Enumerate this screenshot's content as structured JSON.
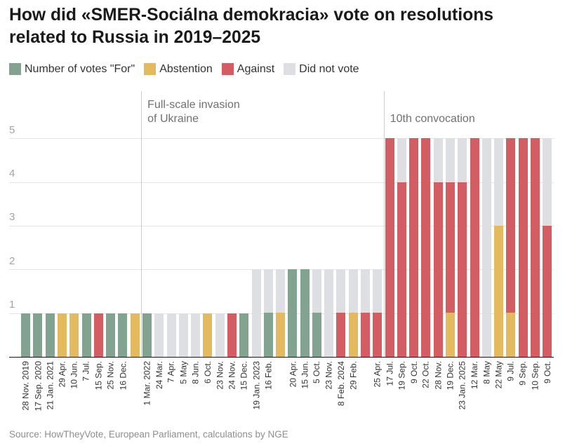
{
  "title": {
    "line1": "How did «SMER-Sociálna demokracia» vote on resolutions",
    "line2": "related to Russia in 2019–2025"
  },
  "legend": [
    {
      "key": "for",
      "label": "Number of votes \"For\"",
      "color": "#82a390"
    },
    {
      "key": "abstention",
      "label": "Abstention",
      "color": "#e4ba5e"
    },
    {
      "key": "against",
      "label": "Against",
      "color": "#d25d62"
    },
    {
      "key": "did_not_vote",
      "label": "Did not vote",
      "color": "#dedfe3"
    }
  ],
  "source": "Source: HowTheyVote, European Parliament, calculations by NGE",
  "chart_data": {
    "type": "bar",
    "stacked": true,
    "title": "How did «SMER-Sociálna demokracia» vote on resolutions related to Russia in 2019–2025",
    "xlabel": "",
    "ylabel": "",
    "ylim": [
      0,
      5
    ],
    "yticks": [
      1,
      2,
      3,
      4,
      5
    ],
    "grid": true,
    "legend_position": "top",
    "series_order": [
      "for",
      "abstention",
      "against",
      "did_not_vote"
    ],
    "annotations": [
      {
        "lines": [
          "Full-scale invasion",
          "of Ukraine"
        ],
        "after_bar_index": 9
      },
      {
        "lines": [
          "10th convocation"
        ],
        "after_bar_index": 29
      }
    ],
    "bars": [
      {
        "label": "28 Nov. 2019",
        "for": 1,
        "abstention": 0,
        "against": 0,
        "did_not_vote": 0
      },
      {
        "label": "17 Sep. 2020",
        "for": 1,
        "abstention": 0,
        "against": 0,
        "did_not_vote": 0
      },
      {
        "label": "21 Jan. 2021",
        "for": 1,
        "abstention": 0,
        "against": 0,
        "did_not_vote": 0
      },
      {
        "label": "29 Apr.",
        "for": 0,
        "abstention": 1,
        "against": 0,
        "did_not_vote": 0
      },
      {
        "label": "10 Jun.",
        "for": 0,
        "abstention": 1,
        "against": 0,
        "did_not_vote": 0
      },
      {
        "label": "7 Jul.",
        "for": 1,
        "abstention": 0,
        "against": 0,
        "did_not_vote": 0
      },
      {
        "label": "15 Sep.",
        "for": 0,
        "abstention": 0,
        "against": 1,
        "did_not_vote": 0
      },
      {
        "label": "25 Nov.",
        "for": 1,
        "abstention": 0,
        "against": 0,
        "did_not_vote": 0
      },
      {
        "label": "16 Dec.",
        "for": 1,
        "abstention": 0,
        "against": 0,
        "did_not_vote": 0
      },
      {
        "label": "",
        "for": 0,
        "abstention": 1,
        "against": 0,
        "did_not_vote": 0
      },
      {
        "label": "1 Mar. 2022",
        "for": 1,
        "abstention": 0,
        "against": 0,
        "did_not_vote": 0
      },
      {
        "label": "24 Mar.",
        "for": 0,
        "abstention": 0,
        "against": 0,
        "did_not_vote": 1
      },
      {
        "label": "7 Apr.",
        "for": 0,
        "abstention": 0,
        "against": 0,
        "did_not_vote": 1
      },
      {
        "label": "5 May",
        "for": 0,
        "abstention": 0,
        "against": 0,
        "did_not_vote": 1
      },
      {
        "label": "8 Jun.",
        "for": 0,
        "abstention": 0,
        "against": 0,
        "did_not_vote": 1
      },
      {
        "label": "6 Oct.",
        "for": 0,
        "abstention": 1,
        "against": 0,
        "did_not_vote": 0
      },
      {
        "label": "23 Nov.",
        "for": 0,
        "abstention": 0,
        "against": 0,
        "did_not_vote": 1
      },
      {
        "label": "24 Nov.",
        "for": 0,
        "abstention": 0,
        "against": 1,
        "did_not_vote": 0
      },
      {
        "label": "15 Dec.",
        "for": 1,
        "abstention": 0,
        "against": 0,
        "did_not_vote": 0
      },
      {
        "label": "19 Jan. 2023",
        "for": 0,
        "abstention": 0,
        "against": 0,
        "did_not_vote": 2
      },
      {
        "label": "16 Feb.",
        "for": 1,
        "abstention": 0,
        "against": 0,
        "did_not_vote": 1
      },
      {
        "label": "",
        "for": 0,
        "abstention": 1,
        "against": 0,
        "did_not_vote": 1
      },
      {
        "label": "20 Apr.",
        "for": 2,
        "abstention": 0,
        "against": 0,
        "did_not_vote": 0
      },
      {
        "label": "15 Jun.",
        "for": 2,
        "abstention": 0,
        "against": 0,
        "did_not_vote": 0
      },
      {
        "label": "5 Oct.",
        "for": 1,
        "abstention": 0,
        "against": 0,
        "did_not_vote": 1
      },
      {
        "label": "23 Nov.",
        "for": 0,
        "abstention": 0,
        "against": 0,
        "did_not_vote": 2
      },
      {
        "label": "8 Feb. 2024",
        "for": 0,
        "abstention": 0,
        "against": 1,
        "did_not_vote": 1
      },
      {
        "label": "29 Feb.",
        "for": 0,
        "abstention": 1,
        "against": 0,
        "did_not_vote": 1
      },
      {
        "label": "",
        "for": 0,
        "abstention": 0,
        "against": 1,
        "did_not_vote": 1
      },
      {
        "label": "25 Apr.",
        "for": 0,
        "abstention": 0,
        "against": 1,
        "did_not_vote": 1
      },
      {
        "label": "17 Jul.",
        "for": 0,
        "abstention": 0,
        "against": 5,
        "did_not_vote": 0
      },
      {
        "label": "19 Sep.",
        "for": 0,
        "abstention": 0,
        "against": 4,
        "did_not_vote": 1
      },
      {
        "label": "9 Oct.",
        "for": 0,
        "abstention": 0,
        "against": 5,
        "did_not_vote": 0
      },
      {
        "label": "22 Oct.",
        "for": 0,
        "abstention": 0,
        "against": 5,
        "did_not_vote": 0
      },
      {
        "label": "28 Nov.",
        "for": 0,
        "abstention": 0,
        "against": 4,
        "did_not_vote": 1
      },
      {
        "label": "19 Dec.",
        "for": 0,
        "abstention": 1,
        "against": 3,
        "did_not_vote": 1
      },
      {
        "label": "23 Jan. 2025",
        "for": 0,
        "abstention": 0,
        "against": 4,
        "did_not_vote": 1
      },
      {
        "label": "12 Mar.",
        "for": 0,
        "abstention": 0,
        "against": 5,
        "did_not_vote": 0
      },
      {
        "label": "8 May",
        "for": 0,
        "abstention": 0,
        "against": 0,
        "did_not_vote": 5
      },
      {
        "label": "22 May",
        "for": 0,
        "abstention": 3,
        "against": 0,
        "did_not_vote": 2
      },
      {
        "label": "9 Jul.",
        "for": 0,
        "abstention": 1,
        "against": 4,
        "did_not_vote": 0
      },
      {
        "label": "9 Sep.",
        "for": 0,
        "abstention": 0,
        "against": 5,
        "did_not_vote": 0
      },
      {
        "label": "10 Sep.",
        "for": 0,
        "abstention": 0,
        "against": 5,
        "did_not_vote": 0
      },
      {
        "label": "9 Oct.",
        "for": 0,
        "abstention": 0,
        "against": 3,
        "did_not_vote": 2
      }
    ]
  }
}
